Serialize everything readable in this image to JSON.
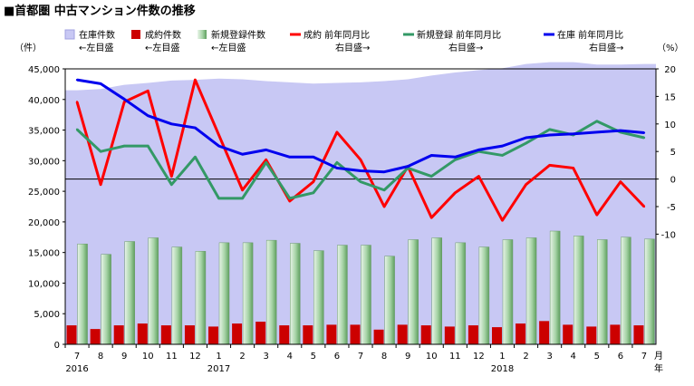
{
  "chart_data": {
    "type": "bar",
    "title": "■首都圏 中古マンション件数の推移",
    "left_axis": {
      "unit_label": "（件）",
      "ylim": [
        0,
        45000
      ],
      "ticks": [
        "0",
        "5,000",
        "10,000",
        "15,000",
        "20,000",
        "25,000",
        "30,000",
        "35,000",
        "40,000",
        "45,000"
      ]
    },
    "right_axis": {
      "unit_label": "（%）",
      "ylim": [
        -30,
        20
      ],
      "ticks": [
        "20",
        "15",
        "10",
        "5",
        "0",
        "-5",
        "-10"
      ]
    },
    "categories": [
      "7",
      "8",
      "9",
      "10",
      "11",
      "12",
      "1",
      "2",
      "3",
      "4",
      "5",
      "6",
      "7",
      "8",
      "9",
      "10",
      "11",
      "12",
      "1",
      "2",
      "3",
      "4",
      "5",
      "6",
      "7"
    ],
    "year_labels": [
      {
        "index": 0,
        "label": "2016"
      },
      {
        "index": 6,
        "label": "2017"
      },
      {
        "index": 18,
        "label": "2018"
      }
    ],
    "month_year_label": "月年",
    "series": [
      {
        "name": "在庫件数",
        "axis_note": "←左目盛",
        "chart": "area",
        "color": "#c8c8f4",
        "values": [
          41500,
          41700,
          42400,
          42700,
          43100,
          43200,
          43400,
          43300,
          43000,
          42800,
          42600,
          42700,
          42800,
          43000,
          43300,
          43900,
          44400,
          44800,
          45100,
          45800,
          46100,
          46100,
          45700,
          45700,
          45800
        ]
      },
      {
        "name": "成約件数",
        "axis_note": "←左目盛",
        "chart": "bar",
        "color": "#cc0000",
        "values": [
          3100,
          2500,
          3100,
          3400,
          3100,
          3100,
          2900,
          3400,
          3700,
          3100,
          3100,
          3200,
          3200,
          2400,
          3200,
          3100,
          2900,
          3100,
          2800,
          3400,
          3800,
          3200,
          2900,
          3200,
          3100
        ]
      },
      {
        "name": "新規登録件数",
        "axis_note": "←左目盛",
        "chart": "bar",
        "color": "#7cb87c",
        "values": [
          16400,
          14700,
          16800,
          17400,
          15900,
          15200,
          16600,
          16600,
          17000,
          16500,
          15300,
          16200,
          16200,
          14400,
          17100,
          17400,
          16600,
          15900,
          17100,
          17400,
          18500,
          17700,
          17100,
          17500,
          17200
        ]
      },
      {
        "name": "成約 前年同月比",
        "axis_note": "右目盛→",
        "chart": "line",
        "color": "#ff0000",
        "values": [
          14,
          -1,
          14,
          16,
          0.5,
          18,
          8,
          -2,
          3.5,
          -4,
          -0.5,
          8.5,
          3.5,
          -5,
          2.3,
          -7,
          -2.5,
          0.5,
          -7.5,
          -1,
          2.5,
          2,
          -6.5,
          -0.5,
          -5
        ]
      },
      {
        "name": "新規登録 前年同月比",
        "axis_note": "右目盛→",
        "chart": "line",
        "color": "#339966",
        "values": [
          9,
          5,
          6,
          6,
          -1,
          4,
          -3.5,
          -3.5,
          3,
          -3.5,
          -2.5,
          3,
          -0.5,
          -2,
          2,
          0.5,
          3.5,
          5,
          4.3,
          6.5,
          9,
          8,
          10.5,
          8.5,
          7.5
        ]
      },
      {
        "name": "在庫 前年同月比",
        "axis_note": "右目盛→",
        "chart": "line",
        "color": "#0000ee",
        "values": [
          18,
          17.3,
          14.5,
          11.5,
          10,
          9.3,
          6,
          4.5,
          5.3,
          4,
          4,
          2,
          1.5,
          1.3,
          2.3,
          4.3,
          4,
          5.3,
          6,
          7.5,
          8,
          8.2,
          8.5,
          8.8,
          8.4
        ]
      }
    ]
  }
}
